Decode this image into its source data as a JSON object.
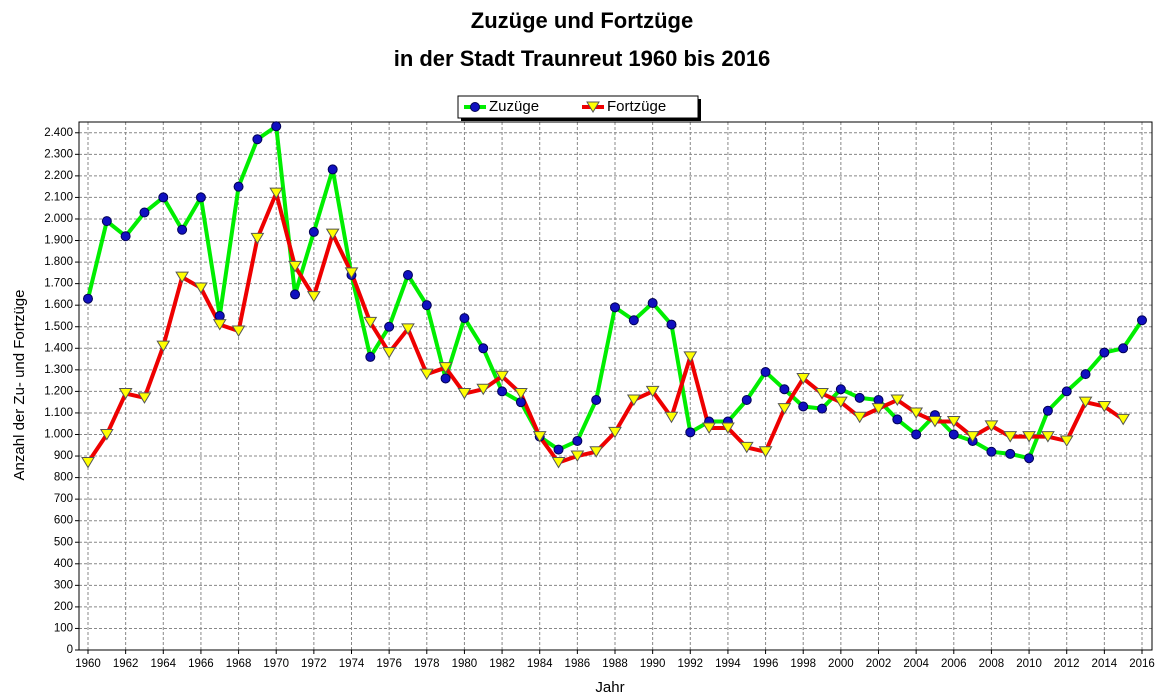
{
  "chart_data": {
    "type": "line",
    "title": "Zuzüge und Fortzüge",
    "subtitle": "in der Stadt Traunreut 1960 bis 2016",
    "x_label": "Jahr",
    "y_label": "Anzahl der Zu- und Fortzüge",
    "x": [
      1960,
      1961,
      1962,
      1963,
      1964,
      1965,
      1966,
      1967,
      1968,
      1969,
      1970,
      1971,
      1972,
      1973,
      1974,
      1975,
      1976,
      1977,
      1978,
      1979,
      1980,
      1981,
      1982,
      1983,
      1984,
      1985,
      1986,
      1987,
      1988,
      1989,
      1990,
      1991,
      1992,
      1993,
      1994,
      1995,
      1996,
      1997,
      1998,
      1999,
      2000,
      2001,
      2002,
      2003,
      2004,
      2005,
      2006,
      2007,
      2008,
      2009,
      2010,
      2011,
      2012,
      2013,
      2014,
      2015,
      2016
    ],
    "series": [
      {
        "name": "Zuzüge",
        "color": "#00ee00",
        "marker": "circle",
        "marker_color": "#1010c0",
        "values": [
          1630,
          1990,
          1920,
          2030,
          2100,
          1950,
          2100,
          1550,
          2150,
          2370,
          2430,
          1650,
          1940,
          2230,
          1740,
          1360,
          1500,
          1740,
          1600,
          1260,
          1540,
          1400,
          1200,
          1150,
          990,
          930,
          970,
          1160,
          1590,
          1530,
          1610,
          1510,
          1010,
          1060,
          1060,
          1160,
          1290,
          1210,
          1130,
          1120,
          1210,
          1170,
          1160,
          1070,
          1000,
          1090,
          1000,
          970,
          920,
          910,
          890,
          1110,
          1200,
          1280,
          1380,
          1400,
          1530
        ]
      },
      {
        "name": "Fortzüge",
        "color": "#ee0000",
        "marker": "triangle",
        "marker_color": "#ffff00",
        "values": [
          870,
          1000,
          1190,
          1170,
          1410,
          1730,
          1680,
          1510,
          1480,
          1910,
          2120,
          1780,
          1640,
          1930,
          1750,
          1520,
          1380,
          1490,
          1280,
          1310,
          1190,
          1210,
          1270,
          1190,
          990,
          870,
          900,
          920,
          1010,
          1160,
          1200,
          1080,
          1360,
          1030,
          1030,
          940,
          920,
          1120,
          1260,
          1190,
          1150,
          1080,
          1120,
          1160,
          1100,
          1060,
          1060,
          990,
          1040,
          990,
          990,
          990,
          970,
          1150,
          1130,
          1070,
          null
        ]
      }
    ],
    "xlim": [
      1960,
      2016
    ],
    "xticks": [
      1960,
      1962,
      1964,
      1966,
      1968,
      1970,
      1972,
      1974,
      1976,
      1978,
      1980,
      1982,
      1984,
      1986,
      1988,
      1990,
      1992,
      1994,
      1996,
      1998,
      2000,
      2002,
      2004,
      2006,
      2008,
      2010,
      2012,
      2014,
      2016
    ],
    "ylim": [
      0,
      2450
    ],
    "yticks": [
      0,
      100,
      200,
      300,
      400,
      500,
      600,
      700,
      800,
      900,
      {
        "value": 1000,
        "label": "1.000"
      },
      {
        "value": 1100,
        "label": "1.100"
      },
      {
        "value": 1200,
        "label": "1.200"
      },
      {
        "value": 1300,
        "label": "1.300"
      },
      {
        "value": 1400,
        "label": "1.400"
      },
      {
        "value": 1500,
        "label": "1.500"
      },
      {
        "value": 1600,
        "label": "1.600"
      },
      {
        "value": 1700,
        "label": "1.700"
      },
      {
        "value": 1800,
        "label": "1.800"
      },
      {
        "value": 1900,
        "label": "1.900"
      },
      {
        "value": 2000,
        "label": "2.000"
      },
      {
        "value": 2100,
        "label": "2.100"
      },
      {
        "value": 2200,
        "label": "2.200"
      },
      {
        "value": 2300,
        "label": "2.300"
      },
      {
        "value": 2400,
        "label": "2.400"
      }
    ],
    "grid": true,
    "legend": "top"
  }
}
